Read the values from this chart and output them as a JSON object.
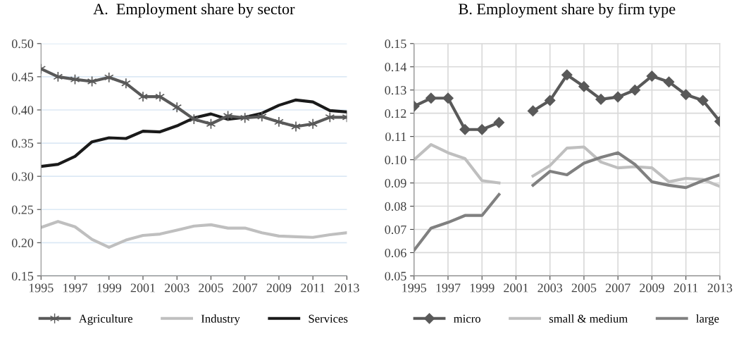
{
  "chart_data": [
    {
      "type": "line",
      "title": "A.  Employment share by sector",
      "x": [
        1995,
        1996,
        1997,
        1998,
        1999,
        2000,
        2001,
        2002,
        2003,
        2004,
        2005,
        2006,
        2007,
        2008,
        2009,
        2010,
        2011,
        2012,
        2013
      ],
      "xlim": [
        1995,
        2013
      ],
      "xticks": [
        1995,
        1997,
        1999,
        2001,
        2003,
        2005,
        2007,
        2009,
        2011,
        2013
      ],
      "ylim": [
        0.15,
        0.5
      ],
      "yticks": [
        {
          "value": 0.15,
          "label": "0.15"
        },
        {
          "value": 0.2,
          "label": "0.20"
        },
        {
          "value": 0.25,
          "label": "0.25"
        },
        {
          "value": 0.3,
          "label": "0.30"
        },
        {
          "value": 0.35,
          "label": "0.35"
        },
        {
          "value": 0.4,
          "label": "0.40"
        },
        {
          "value": 0.45,
          "label": "0.45"
        },
        {
          "value": 0.5,
          "label": "0.50"
        }
      ],
      "grid": "y",
      "legend": "bottom",
      "series": [
        {
          "name": "Agriculture",
          "color": "#595959",
          "marker": "cross",
          "values": [
            0.462,
            0.45,
            0.446,
            0.443,
            0.449,
            0.44,
            0.42,
            0.42,
            0.404,
            0.386,
            0.379,
            0.391,
            0.388,
            0.39,
            0.382,
            0.375,
            0.379,
            0.389,
            0.389
          ]
        },
        {
          "name": "Industry",
          "color": "#bfbfbf",
          "values": [
            0.223,
            0.232,
            0.224,
            0.205,
            0.193,
            0.204,
            0.211,
            0.213,
            0.219,
            0.225,
            0.227,
            0.222,
            0.222,
            0.215,
            0.21,
            0.209,
            0.208,
            0.212,
            0.215
          ]
        },
        {
          "name": "Services",
          "color": "#1a1a1a",
          "values": [
            0.315,
            0.318,
            0.33,
            0.352,
            0.358,
            0.357,
            0.368,
            0.367,
            0.376,
            0.388,
            0.394,
            0.386,
            0.389,
            0.395,
            0.407,
            0.415,
            0.412,
            0.399,
            0.397
          ]
        }
      ]
    },
    {
      "type": "line",
      "title": "B. Employment share by firm type",
      "x": [
        1995,
        1996,
        1997,
        1998,
        1999,
        2000,
        2001,
        2002,
        2003,
        2004,
        2005,
        2006,
        2007,
        2008,
        2009,
        2010,
        2011,
        2012,
        2013
      ],
      "xlim": [
        1995,
        2013
      ],
      "xticks": [
        1995,
        1997,
        1999,
        2001,
        2003,
        2005,
        2007,
        2009,
        2011,
        2013
      ],
      "ylim": [
        0.05,
        0.15
      ],
      "yticks": [
        {
          "value": 0.05,
          "label": "0.05"
        },
        {
          "value": 0.06,
          "label": "0.06"
        },
        {
          "value": 0.07,
          "label": "0.07"
        },
        {
          "value": 0.08,
          "label": "0.08"
        },
        {
          "value": 0.09,
          "label": "0.09"
        },
        {
          "value": 0.1,
          "label": "0.10"
        },
        {
          "value": 0.11,
          "label": "0.11"
        },
        {
          "value": 0.12,
          "label": "0.12"
        },
        {
          "value": 0.13,
          "label": "0.13"
        },
        {
          "value": 0.14,
          "label": "0.14"
        },
        {
          "value": 0.15,
          "label": "0.15"
        }
      ],
      "grid": true,
      "legend": "bottom",
      "series": [
        {
          "name": "micro",
          "color": "#595959",
          "marker": "diamond",
          "values": [
            0.123,
            0.1265,
            0.1265,
            0.113,
            0.113,
            0.116,
            null,
            0.121,
            0.1255,
            0.1365,
            0.1315,
            0.126,
            0.127,
            0.13,
            0.136,
            0.1335,
            0.128,
            0.1255,
            0.1165
          ]
        },
        {
          "name": "small & medium",
          "color": "#bfbfbf",
          "values": [
            0.1,
            0.1065,
            0.103,
            0.1005,
            0.091,
            0.09,
            null,
            0.093,
            0.0975,
            0.105,
            0.1055,
            0.099,
            0.0965,
            0.097,
            0.0965,
            0.0905,
            0.092,
            0.0915,
            0.0885
          ]
        },
        {
          "name": "large",
          "color": "#808080",
          "values": [
            0.061,
            0.0705,
            0.073,
            0.076,
            0.076,
            0.085,
            null,
            0.089,
            0.095,
            0.0935,
            0.0985,
            0.101,
            0.103,
            0.098,
            0.0905,
            0.089,
            0.088,
            0.091,
            0.0935
          ]
        }
      ]
    }
  ]
}
